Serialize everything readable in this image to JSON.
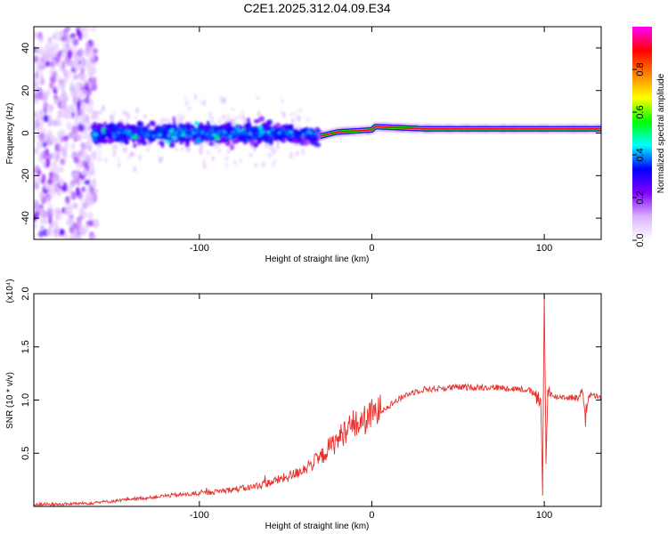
{
  "title": "C2E1.2025.312.04.09.E34",
  "colors": {
    "snr_line": "#e8302c",
    "frame": "#000000",
    "text": "#000000"
  },
  "chart_data": [
    {
      "type": "heatmap",
      "name": "spectrogram",
      "xlabel": "Height of straight line (km)",
      "ylabel": "Frequency (Hz)",
      "xlim": [
        -196,
        133
      ],
      "ylim": [
        -50,
        50
      ],
      "x_ticks": [
        -100,
        0,
        100
      ],
      "x_tick_labels": [
        "-100",
        "0",
        "100"
      ],
      "y_ticks": [
        -40,
        -20,
        0,
        20,
        40
      ],
      "y_tick_labels": [
        "-40",
        "-20",
        "0",
        "20",
        "40"
      ],
      "grid": false,
      "colorbar": {
        "label": "Normalized spectral amplitude",
        "range": [
          0,
          1
        ],
        "ticks": [
          0.0,
          0.2,
          0.4,
          0.6,
          0.8
        ],
        "tick_labels": [
          "0.0",
          "0.2",
          "0.4",
          "0.6",
          "0.8"
        ],
        "colormap": [
          "#ffffff",
          "#d9b3ff",
          "#8000ff",
          "#0000ff",
          "#00ffff",
          "#00ff00",
          "#ffff00",
          "#ff8000",
          "#ff0000",
          "#ff00ff"
        ]
      },
      "features": {
        "noise_region_x": [
          -196,
          -162
        ],
        "broad_band_x": [
          -162,
          -30
        ],
        "broad_band_halfwidth_hz": 7,
        "narrow_line_x": [
          -30,
          133
        ],
        "narrow_line_center_hz": [
          [
            -30,
            -1.5
          ],
          [
            -20,
            0.5
          ],
          [
            0,
            1.5
          ],
          [
            2,
            3.0
          ],
          [
            30,
            2.0
          ],
          [
            100,
            2.0
          ],
          [
            133,
            2.0
          ]
        ]
      }
    },
    {
      "type": "line",
      "name": "snr",
      "xlabel": "Height of straight line (km)",
      "ylabel": "SNR (10 * v/v)",
      "y_multiplier_label": "(x10⁴)",
      "xlim": [
        -196,
        133
      ],
      "ylim": [
        0,
        2.0
      ],
      "x_ticks": [
        -100,
        0,
        100
      ],
      "x_tick_labels": [
        "-100",
        "0",
        "100"
      ],
      "y_ticks": [
        0.5,
        1.0,
        1.5,
        2.0
      ],
      "y_tick_labels": [
        "0.5",
        "1.0",
        "1.5",
        "2.0"
      ],
      "grid": false,
      "series": [
        {
          "name": "SNR",
          "x": [
            -196,
            -180,
            -165,
            -150,
            -140,
            -130,
            -120,
            -110,
            -100,
            -90,
            -80,
            -70,
            -60,
            -50,
            -45,
            -40,
            -35,
            -30,
            -25,
            -20,
            -15,
            -10,
            -5,
            0,
            5,
            10,
            15,
            20,
            25,
            30,
            40,
            50,
            60,
            70,
            80,
            90,
            95,
            98,
            99,
            100,
            101,
            102,
            105,
            110,
            120,
            122,
            124,
            126,
            133
          ],
          "y": [
            0.02,
            0.02,
            0.03,
            0.05,
            0.07,
            0.08,
            0.1,
            0.11,
            0.12,
            0.14,
            0.16,
            0.18,
            0.22,
            0.27,
            0.3,
            0.35,
            0.4,
            0.45,
            0.55,
            0.62,
            0.72,
            0.76,
            0.8,
            0.86,
            0.9,
            0.95,
            1.0,
            1.05,
            1.08,
            1.1,
            1.11,
            1.12,
            1.12,
            1.12,
            1.11,
            1.1,
            1.05,
            0.95,
            0.1,
            2.0,
            0.4,
            1.1,
            1.03,
            1.03,
            1.02,
            1.1,
            0.85,
            1.05,
            1.02
          ]
        }
      ]
    }
  ]
}
